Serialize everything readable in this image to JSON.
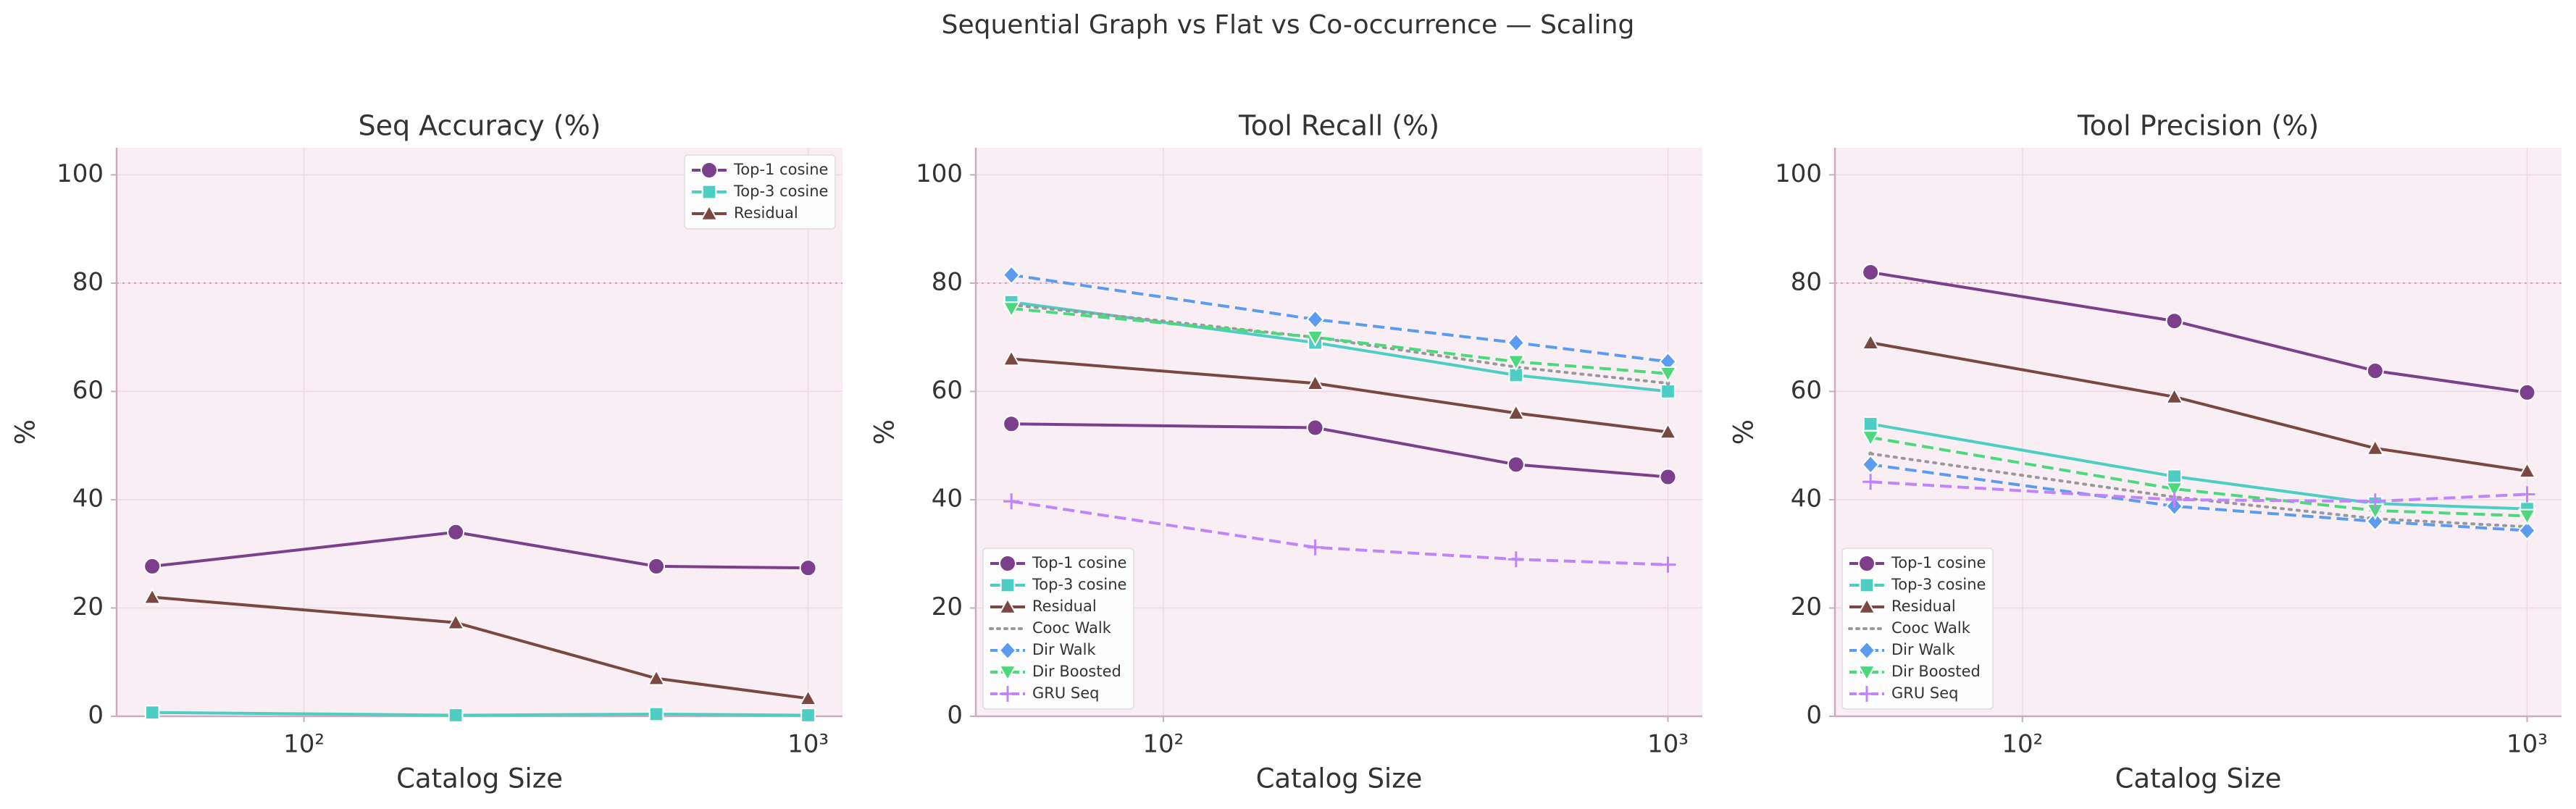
{
  "title": "Sequential Graph vs Flat vs Co-occurrence — Scaling",
  "chart_data": [
    {
      "type": "line",
      "title": "Seq Accuracy (%)",
      "x_label": "Catalog Size",
      "y_label": "%",
      "x": [
        50,
        200,
        500,
        1000
      ],
      "log_x": true,
      "xlim": [
        42.5,
        1170
      ],
      "ylim": [
        0,
        105
      ],
      "xticks": [
        {
          "value": 100,
          "label": "10²"
        },
        {
          "value": 1000,
          "label": "10³"
        }
      ],
      "yticks": [
        0,
        20,
        40,
        60,
        80,
        100
      ],
      "grid": true,
      "hline": 80,
      "legend_loc": "upper right",
      "series": [
        {
          "name": "Top-1 cosine",
          "color": "#7b3f8c",
          "dash": "solid",
          "marker": "circle",
          "values": [
            27.7,
            34.0,
            27.7,
            27.4
          ]
        },
        {
          "name": "Top-3 cosine",
          "color": "#4ecdc4",
          "dash": "solid",
          "marker": "square",
          "values": [
            0.7,
            0.2,
            0.4,
            0.2
          ]
        },
        {
          "name": "Residual",
          "color": "#7a4840",
          "dash": "solid",
          "marker": "triangle-up",
          "values": [
            22.0,
            17.3,
            7.0,
            3.3
          ]
        }
      ]
    },
    {
      "type": "line",
      "title": "Tool Recall (%)",
      "x_label": "Catalog Size",
      "y_label": "%",
      "x": [
        50,
        200,
        500,
        1000
      ],
      "log_x": true,
      "xlim": [
        42.5,
        1170
      ],
      "ylim": [
        0,
        105
      ],
      "xticks": [
        {
          "value": 100,
          "label": "10²"
        },
        {
          "value": 1000,
          "label": "10³"
        }
      ],
      "yticks": [
        0,
        20,
        40,
        60,
        80,
        100
      ],
      "grid": true,
      "hline": 80,
      "legend_loc": "lower left",
      "series": [
        {
          "name": "Top-1 cosine",
          "color": "#7b3f8c",
          "dash": "solid",
          "marker": "circle",
          "values": [
            54.0,
            53.3,
            46.5,
            44.2
          ]
        },
        {
          "name": "Top-3 cosine",
          "color": "#4ecdc4",
          "dash": "solid",
          "marker": "square",
          "values": [
            76.5,
            69.0,
            63.0,
            60.0
          ]
        },
        {
          "name": "Residual",
          "color": "#7a4840",
          "dash": "solid",
          "marker": "triangle-up",
          "values": [
            66.0,
            61.5,
            56.0,
            52.5
          ]
        },
        {
          "name": "Cooc Walk",
          "color": "#999999",
          "dash": "dotted",
          "marker": "none",
          "values": [
            76.0,
            70.0,
            64.5,
            61.5
          ]
        },
        {
          "name": "Dir Walk",
          "color": "#5b9cf0",
          "dash": "dashed",
          "marker": "diamond",
          "values": [
            81.5,
            73.3,
            69.0,
            65.5
          ]
        },
        {
          "name": "Dir Boosted",
          "color": "#4cd97b",
          "dash": "dashed",
          "marker": "triangle-down",
          "values": [
            75.3,
            70.0,
            65.5,
            63.3
          ]
        },
        {
          "name": "GRU Seq",
          "color": "#c084fc",
          "dash": "dashed",
          "marker": "plus",
          "values": [
            39.7,
            31.2,
            29.0,
            28.0
          ]
        }
      ]
    },
    {
      "type": "line",
      "title": "Tool Precision (%)",
      "x_label": "Catalog Size",
      "y_label": "%",
      "x": [
        50,
        200,
        500,
        1000
      ],
      "log_x": true,
      "xlim": [
        42.5,
        1170
      ],
      "ylim": [
        0,
        105
      ],
      "xticks": [
        {
          "value": 100,
          "label": "10²"
        },
        {
          "value": 1000,
          "label": "10³"
        }
      ],
      "yticks": [
        0,
        20,
        40,
        60,
        80,
        100
      ],
      "grid": true,
      "hline": 80,
      "legend_loc": "lower left",
      "series": [
        {
          "name": "Top-1 cosine",
          "color": "#7b3f8c",
          "dash": "solid",
          "marker": "circle",
          "values": [
            82.0,
            73.0,
            63.8,
            59.8
          ]
        },
        {
          "name": "Top-3 cosine",
          "color": "#4ecdc4",
          "dash": "solid",
          "marker": "square",
          "values": [
            54.0,
            44.3,
            39.3,
            38.3
          ]
        },
        {
          "name": "Residual",
          "color": "#7a4840",
          "dash": "solid",
          "marker": "triangle-up",
          "values": [
            69.0,
            59.0,
            49.5,
            45.3
          ]
        },
        {
          "name": "Cooc Walk",
          "color": "#999999",
          "dash": "dotted",
          "marker": "none",
          "values": [
            48.5,
            40.5,
            36.5,
            35.0
          ]
        },
        {
          "name": "Dir Walk",
          "color": "#5b9cf0",
          "dash": "dashed",
          "marker": "diamond",
          "values": [
            46.5,
            38.8,
            36.0,
            34.3
          ]
        },
        {
          "name": "Dir Boosted",
          "color": "#4cd97b",
          "dash": "dashed",
          "marker": "triangle-down",
          "values": [
            51.5,
            42.0,
            38.0,
            37.0
          ]
        },
        {
          "name": "GRU Seq",
          "color": "#c084fc",
          "dash": "dashed",
          "marker": "plus",
          "values": [
            43.3,
            40.0,
            39.7,
            41.0
          ]
        }
      ]
    }
  ]
}
